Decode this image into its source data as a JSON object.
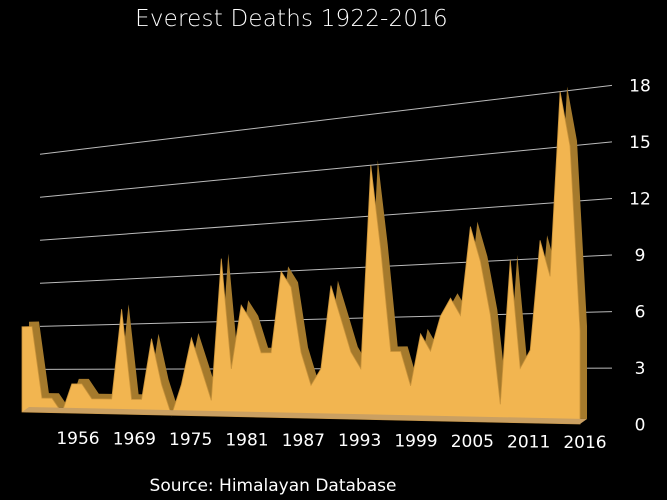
{
  "chart_data": {
    "type": "area",
    "title": "Everest Deaths 1922-2016",
    "source": "Source: Himalayan Database",
    "ylim": [
      0,
      18
    ],
    "yticks": [
      0,
      3,
      6,
      9,
      12,
      15,
      18
    ],
    "xtick_labels": [
      "1956",
      "1969",
      "1975",
      "1981",
      "1987",
      "1993",
      "1999",
      "2005",
      "2011",
      "2016"
    ],
    "grid": true,
    "style": "3d-extruded",
    "fill_color": "#f2b550",
    "shade_color": "#a57a2c",
    "values": [
      6,
      6,
      1,
      1,
      0,
      2,
      2,
      1,
      1,
      1,
      7,
      1,
      1,
      5,
      2,
      0,
      2,
      5,
      3,
      1,
      10,
      3,
      7,
      6,
      4,
      4,
      9,
      8,
      4,
      2,
      3,
      8,
      6,
      4,
      3,
      15,
      10,
      4,
      4,
      2,
      5,
      4,
      6,
      7,
      6,
      11,
      9,
      6,
      1,
      9,
      3,
      4,
      10,
      8,
      18,
      15,
      5
    ]
  }
}
